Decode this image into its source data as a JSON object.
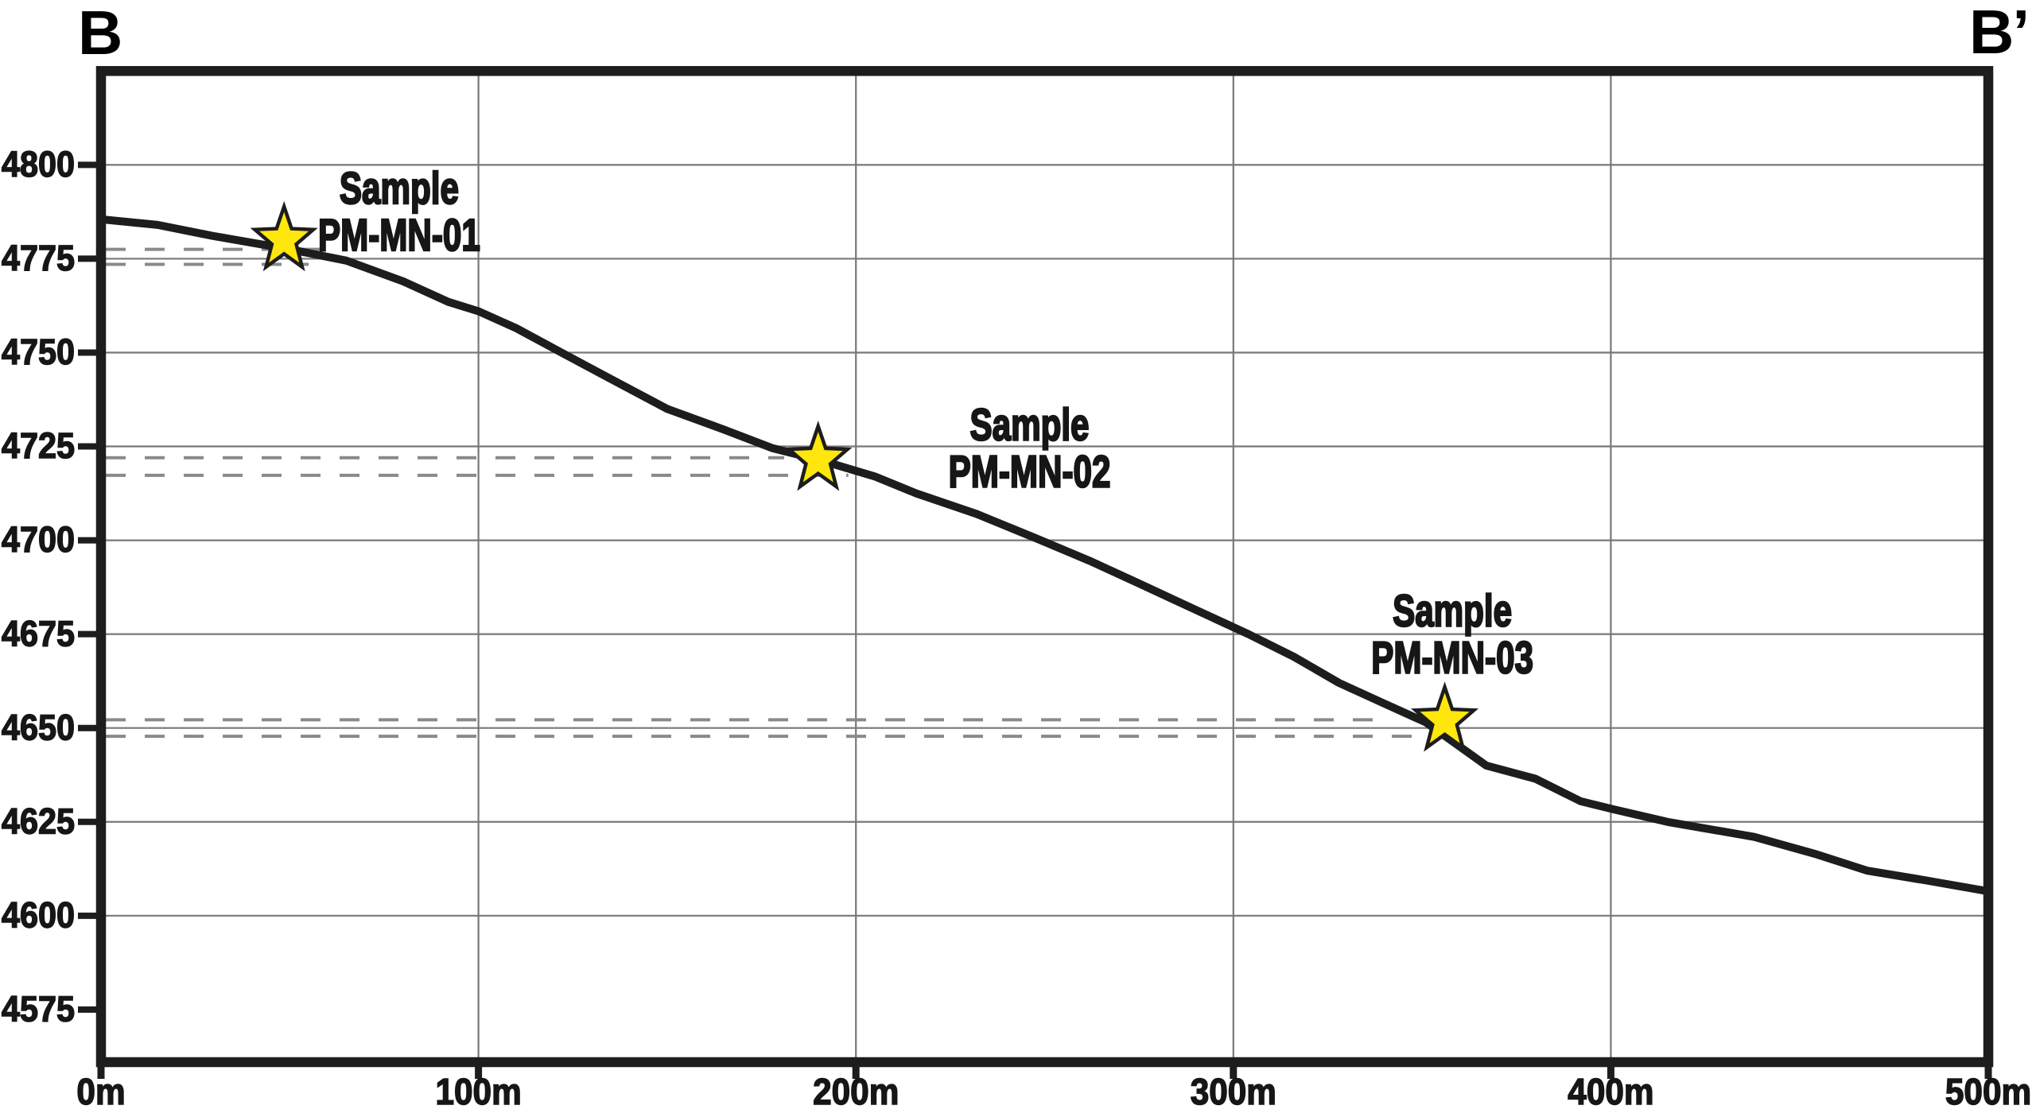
{
  "figure": {
    "endpoint_left": "B",
    "endpoint_right": "B’"
  },
  "chart_data": {
    "type": "line",
    "description": "Topographic cross-section profile from B to B' with three rock-sample locations marked by stars and dashed sampled-interval lines",
    "xlim": [
      0,
      500
    ],
    "ylim": [
      4561,
      4825
    ],
    "x_ticks": [
      {
        "value": 0,
        "label": "0m"
      },
      {
        "value": 100,
        "label": "100m"
      },
      {
        "value": 200,
        "label": "200m"
      },
      {
        "value": 300,
        "label": "300m"
      },
      {
        "value": 400,
        "label": "400m"
      },
      {
        "value": 500,
        "label": "500m"
      }
    ],
    "x_gridline_values": [
      100,
      200,
      300,
      400
    ],
    "y_ticks": [
      {
        "value": 4800,
        "label": "4800",
        "gridline": true
      },
      {
        "value": 4775,
        "label": "4775",
        "gridline": true
      },
      {
        "value": 4750,
        "label": "4750",
        "gridline": true
      },
      {
        "value": 4725,
        "label": "4725",
        "gridline": true
      },
      {
        "value": 4700,
        "label": "4700",
        "gridline": true
      },
      {
        "value": 4675,
        "label": "4675",
        "gridline": true
      },
      {
        "value": 4650,
        "label": "4650",
        "gridline": true
      },
      {
        "value": 4625,
        "label": "4625",
        "gridline": true
      },
      {
        "value": 4600,
        "label": "4600",
        "gridline": true
      },
      {
        "value": 4575,
        "label": "4575",
        "gridline": false
      }
    ],
    "series": [
      {
        "name": "ground-surface-profile",
        "points": [
          [
            0,
            4785.5
          ],
          [
            15,
            4784
          ],
          [
            30,
            4781
          ],
          [
            50,
            4777.5
          ],
          [
            65,
            4774.5
          ],
          [
            80,
            4769
          ],
          [
            92,
            4763.5
          ],
          [
            100,
            4761
          ],
          [
            110,
            4756.5
          ],
          [
            122,
            4750
          ],
          [
            135,
            4743
          ],
          [
            150,
            4735
          ],
          [
            165,
            4729.5
          ],
          [
            178,
            4724.5
          ],
          [
            190,
            4721.5
          ],
          [
            205,
            4717
          ],
          [
            216,
            4712.5
          ],
          [
            232,
            4707
          ],
          [
            249,
            4700
          ],
          [
            262,
            4694.5
          ],
          [
            275,
            4688.5
          ],
          [
            290,
            4681.5
          ],
          [
            304,
            4675
          ],
          [
            316,
            4669
          ],
          [
            328,
            4662
          ],
          [
            340,
            4656.5
          ],
          [
            351,
            4651.5
          ],
          [
            367,
            4640
          ],
          [
            380,
            4636.5
          ],
          [
            392,
            4630.5
          ],
          [
            400,
            4628.5
          ],
          [
            415,
            4625
          ],
          [
            438,
            4621
          ],
          [
            454,
            4616.5
          ],
          [
            468,
            4612
          ],
          [
            483,
            4609.5
          ],
          [
            500,
            4606.5
          ]
        ]
      }
    ],
    "samples": [
      {
        "label_lines": [
          "Sample",
          "PM-MN-01"
        ],
        "star": {
          "dist": 48.5,
          "elev": 4780
        },
        "label_center": {
          "dist": 79,
          "elev": 4787.5
        },
        "dashed_lines": [
          {
            "elev": 4777.5,
            "end_dist": 60
          },
          {
            "elev": 4773.5,
            "end_dist": 55
          }
        ]
      },
      {
        "label_lines": [
          "Sample",
          "PM-MN-02"
        ],
        "star": {
          "dist": 190,
          "elev": 4721.5
        },
        "label_center": {
          "dist": 246,
          "elev": 4724.5
        },
        "dashed_lines": [
          {
            "elev": 4722,
            "end_dist": 181
          },
          {
            "elev": 4717.3,
            "end_dist": 198
          }
        ]
      },
      {
        "label_lines": [
          "Sample",
          "PM-MN-03"
        ],
        "star": {
          "dist": 356,
          "elev": 4652
        },
        "label_center": {
          "dist": 358,
          "elev": 4675
        },
        "dashed_lines": [
          {
            "elev": 4652.2,
            "end_dist": 340
          },
          {
            "elev": 4647.8,
            "end_dist": 348
          }
        ]
      }
    ],
    "style": {
      "background": "#ffffff",
      "terrain_color": "#1d1d1d",
      "border_color": "#1d1d1d",
      "grid_color": "#787878",
      "dash_color": "#8a8a8a",
      "tick_color": "#1d1d1d",
      "text_color": "#161616",
      "star_fill": "#FFE60D",
      "star_stroke": "#1d1d1d"
    }
  }
}
